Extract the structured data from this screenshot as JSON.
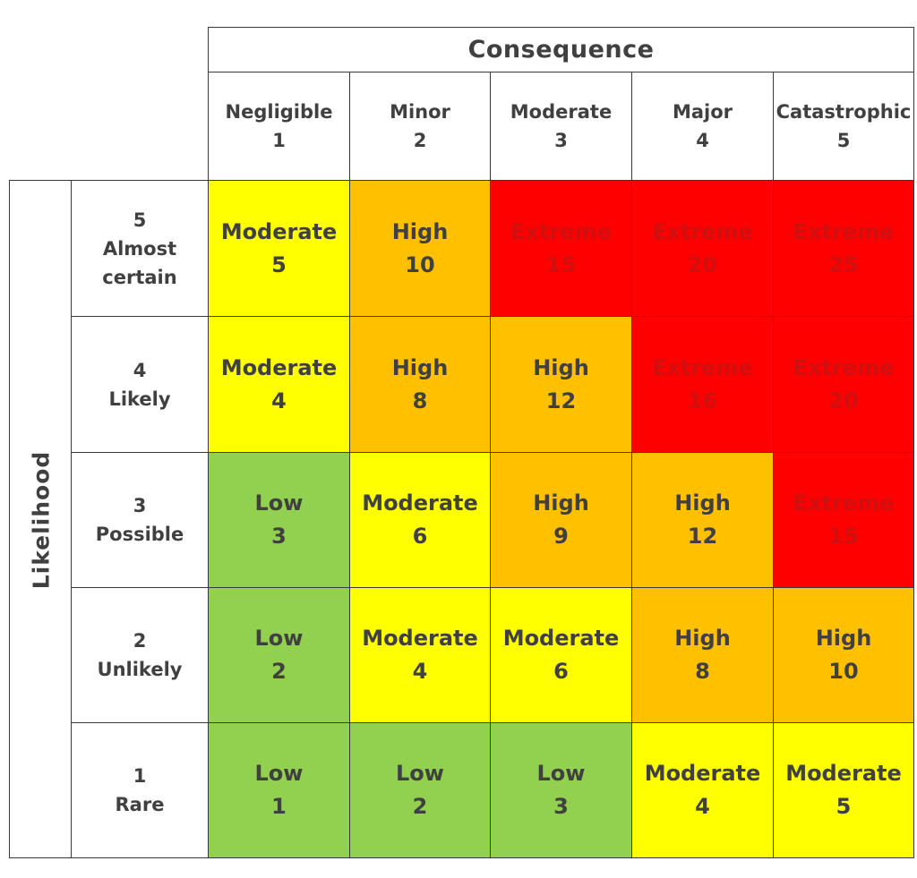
{
  "consequence_title": "Consequence",
  "likelihood_title": "Likelihood",
  "consequences": [
    {
      "label": "Negligible",
      "value": "1"
    },
    {
      "label": "Minor",
      "value": "2"
    },
    {
      "label": "Moderate",
      "value": "3"
    },
    {
      "label": "Major",
      "value": "4"
    },
    {
      "label": "Catastrophic",
      "value": "5"
    }
  ],
  "likelihoods": [
    {
      "value": "5",
      "label_lines": [
        "Almost",
        "certain"
      ]
    },
    {
      "value": "4",
      "label_lines": [
        "Likely"
      ]
    },
    {
      "value": "3",
      "label_lines": [
        "Possible"
      ]
    },
    {
      "value": "2",
      "label_lines": [
        "Unlikely"
      ]
    },
    {
      "value": "1",
      "label_lines": [
        "Rare"
      ]
    }
  ],
  "levels": {
    "Low": {
      "fill": "#92d050",
      "text": "#404040"
    },
    "Moderate": {
      "fill": "#ffff00",
      "text": "#404040"
    },
    "High": {
      "fill": "#ffc000",
      "text": "#404040"
    },
    "Extreme": {
      "fill": "#ff0000",
      "text": "#d01010"
    }
  },
  "grid": [
    [
      {
        "rating": "Moderate",
        "score": "5"
      },
      {
        "rating": "High",
        "score": "10"
      },
      {
        "rating": "Extreme",
        "score": "15"
      },
      {
        "rating": "Extreme",
        "score": "20"
      },
      {
        "rating": "Extreme",
        "score": "25"
      }
    ],
    [
      {
        "rating": "Moderate",
        "score": "4"
      },
      {
        "rating": "High",
        "score": "8"
      },
      {
        "rating": "High",
        "score": "12"
      },
      {
        "rating": "Extreme",
        "score": "16"
      },
      {
        "rating": "Extreme",
        "score": "20"
      }
    ],
    [
      {
        "rating": "Low",
        "score": "3"
      },
      {
        "rating": "Moderate",
        "score": "6"
      },
      {
        "rating": "High",
        "score": "9"
      },
      {
        "rating": "High",
        "score": "12"
      },
      {
        "rating": "Extreme",
        "score": "15"
      }
    ],
    [
      {
        "rating": "Low",
        "score": "2"
      },
      {
        "rating": "Moderate",
        "score": "4"
      },
      {
        "rating": "Moderate",
        "score": "6"
      },
      {
        "rating": "High",
        "score": "8"
      },
      {
        "rating": "High",
        "score": "10"
      }
    ],
    [
      {
        "rating": "Low",
        "score": "1"
      },
      {
        "rating": "Low",
        "score": "2"
      },
      {
        "rating": "Low",
        "score": "3"
      },
      {
        "rating": "Moderate",
        "score": "4"
      },
      {
        "rating": "Moderate",
        "score": "5"
      }
    ]
  ]
}
